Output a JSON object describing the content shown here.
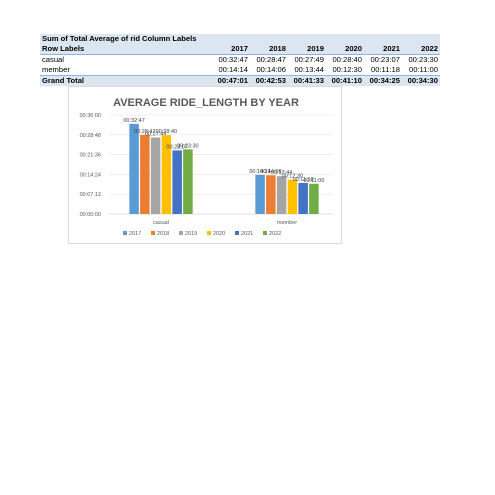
{
  "pivot": {
    "title": "Sum of Total Average of ride_length",
    "column_labels": "Column Labels",
    "row_labels": "Row Labels",
    "years": [
      "2017",
      "2018",
      "2019",
      "2020",
      "2021",
      "2022"
    ],
    "rows": [
      {
        "label": "casual",
        "values": [
          "00:32:47",
          "00:28:47",
          "00:27:49",
          "00:28:40",
          "00:23:07",
          "00:23:30"
        ]
      },
      {
        "label": "member",
        "values": [
          "00:14:14",
          "00:14:06",
          "00:13:44",
          "00:12:30",
          "00:11:18",
          "00:11:00"
        ]
      }
    ],
    "total": {
      "label": "Grand Total",
      "values": [
        "00:47:01",
        "00:42:53",
        "00:41:33",
        "00:41:10",
        "00:34:25",
        "00:34:30"
      ]
    }
  },
  "chart_data": {
    "type": "bar",
    "title": "AVERAGE RIDE_LENGTH BY YEAR",
    "categories": [
      "casual",
      "member"
    ],
    "y_ticks": [
      "00:00:00",
      "00:07:12",
      "00:14:24",
      "00:21:36",
      "00:28:48",
      "00:36:00"
    ],
    "ylim_seconds": [
      0,
      2160
    ],
    "grid": true,
    "legend_position": "bottom",
    "series": [
      {
        "name": "2017",
        "color": "#5b9bd5",
        "values": [
          "00:32:47",
          "00:14:14"
        ]
      },
      {
        "name": "2018",
        "color": "#ed7d31",
        "values": [
          "00:28:47",
          "00:14:06"
        ]
      },
      {
        "name": "2019",
        "color": "#a5a5a5",
        "values": [
          "00:27:49",
          "00:13:44"
        ]
      },
      {
        "name": "2020",
        "color": "#ffc000",
        "values": [
          "00:28:40",
          "00:12:30"
        ]
      },
      {
        "name": "2021",
        "color": "#4472c4",
        "values": [
          "00:23:07",
          "00:11:18"
        ]
      },
      {
        "name": "2022",
        "color": "#70ad47",
        "values": [
          "00:23:30",
          "00:11:00"
        ]
      }
    ]
  }
}
